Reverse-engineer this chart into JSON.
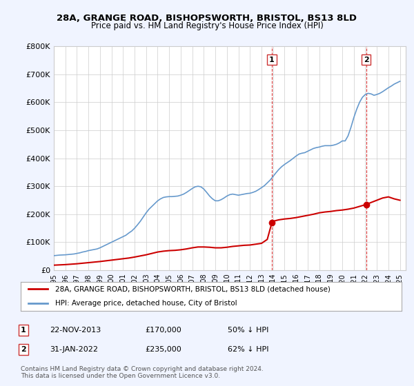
{
  "title": "28A, GRANGE ROAD, BISHOPSWORTH, BRISTOL, BS13 8LD",
  "subtitle": "Price paid vs. HM Land Registry's House Price Index (HPI)",
  "ylabel_ticks": [
    "£0",
    "£100K",
    "£200K",
    "£300K",
    "£400K",
    "£500K",
    "£600K",
    "£700K",
    "£800K"
  ],
  "ylim": [
    0,
    800000
  ],
  "xlim_start": 1995.0,
  "xlim_end": 2025.5,
  "sale1_date": 2013.9,
  "sale1_price": 170000,
  "sale1_label": "22-NOV-2013",
  "sale1_hpi_pct": "50% ↓ HPI",
  "sale2_date": 2022.08,
  "sale2_price": 235000,
  "sale2_label": "31-JAN-2022",
  "sale2_hpi_pct": "62% ↓ HPI",
  "red_line_color": "#cc0000",
  "blue_line_color": "#6699cc",
  "background_color": "#f0f4ff",
  "plot_bg_color": "#ffffff",
  "grid_color": "#cccccc",
  "legend1": "28A, GRANGE ROAD, BISHOPSWORTH, BRISTOL, BS13 8LD (detached house)",
  "legend2": "HPI: Average price, detached house, City of Bristol",
  "footnote": "Contains HM Land Registry data © Crown copyright and database right 2024.\nThis data is licensed under the Open Government Licence v3.0.",
  "hpi_years": [
    1995.0,
    1995.25,
    1995.5,
    1995.75,
    1996.0,
    1996.25,
    1996.5,
    1996.75,
    1997.0,
    1997.25,
    1997.5,
    1997.75,
    1998.0,
    1998.25,
    1998.5,
    1998.75,
    1999.0,
    1999.25,
    1999.5,
    1999.75,
    2000.0,
    2000.25,
    2000.5,
    2000.75,
    2001.0,
    2001.25,
    2001.5,
    2001.75,
    2002.0,
    2002.25,
    2002.5,
    2002.75,
    2003.0,
    2003.25,
    2003.5,
    2003.75,
    2004.0,
    2004.25,
    2004.5,
    2004.75,
    2005.0,
    2005.25,
    2005.5,
    2005.75,
    2006.0,
    2006.25,
    2006.5,
    2006.75,
    2007.0,
    2007.25,
    2007.5,
    2007.75,
    2008.0,
    2008.25,
    2008.5,
    2008.75,
    2009.0,
    2009.25,
    2009.5,
    2009.75,
    2010.0,
    2010.25,
    2010.5,
    2010.75,
    2011.0,
    2011.25,
    2011.5,
    2011.75,
    2012.0,
    2012.25,
    2012.5,
    2012.75,
    2013.0,
    2013.25,
    2013.5,
    2013.75,
    2014.0,
    2014.25,
    2014.5,
    2014.75,
    2015.0,
    2015.25,
    2015.5,
    2015.75,
    2016.0,
    2016.25,
    2016.5,
    2016.75,
    2017.0,
    2017.25,
    2017.5,
    2017.75,
    2018.0,
    2018.25,
    2018.5,
    2018.75,
    2019.0,
    2019.25,
    2019.5,
    2019.75,
    2020.0,
    2020.25,
    2020.5,
    2020.75,
    2021.0,
    2021.25,
    2021.5,
    2021.75,
    2022.0,
    2022.25,
    2022.5,
    2022.75,
    2023.0,
    2023.25,
    2023.5,
    2023.75,
    2024.0,
    2024.25,
    2024.5,
    2024.75,
    2025.0
  ],
  "hpi_values": [
    52000,
    53000,
    54000,
    54500,
    55000,
    56000,
    57000,
    58000,
    60000,
    62000,
    65000,
    67000,
    70000,
    72000,
    74000,
    76000,
    80000,
    85000,
    90000,
    95000,
    100000,
    105000,
    110000,
    115000,
    120000,
    125000,
    133000,
    140000,
    150000,
    162000,
    175000,
    190000,
    205000,
    218000,
    228000,
    238000,
    248000,
    255000,
    260000,
    262000,
    263000,
    263000,
    264000,
    265000,
    268000,
    272000,
    278000,
    285000,
    292000,
    298000,
    300000,
    298000,
    290000,
    278000,
    265000,
    255000,
    248000,
    248000,
    252000,
    258000,
    265000,
    270000,
    272000,
    270000,
    268000,
    270000,
    272000,
    274000,
    275000,
    278000,
    282000,
    288000,
    295000,
    302000,
    312000,
    322000,
    335000,
    348000,
    360000,
    370000,
    378000,
    385000,
    392000,
    400000,
    408000,
    415000,
    418000,
    420000,
    425000,
    430000,
    435000,
    438000,
    440000,
    443000,
    445000,
    445000,
    445000,
    447000,
    450000,
    455000,
    462000,
    462000,
    480000,
    510000,
    545000,
    575000,
    600000,
    618000,
    628000,
    632000,
    630000,
    625000,
    628000,
    632000,
    638000,
    645000,
    652000,
    658000,
    665000,
    670000,
    675000
  ],
  "red_years": [
    1995.0,
    1995.5,
    1996.0,
    1996.5,
    1997.0,
    1997.5,
    1998.0,
    1998.5,
    1999.0,
    1999.5,
    2000.0,
    2000.5,
    2001.0,
    2001.5,
    2002.0,
    2002.5,
    2003.0,
    2003.5,
    2004.0,
    2004.5,
    2005.0,
    2005.5,
    2006.0,
    2006.5,
    2007.0,
    2007.5,
    2008.0,
    2008.5,
    2009.0,
    2009.5,
    2010.0,
    2010.5,
    2011.0,
    2011.5,
    2012.0,
    2012.5,
    2013.0,
    2013.5,
    2013.9,
    2014.0,
    2014.5,
    2015.0,
    2015.5,
    2016.0,
    2016.5,
    2017.0,
    2017.5,
    2018.0,
    2018.5,
    2019.0,
    2019.5,
    2020.0,
    2020.5,
    2021.0,
    2021.5,
    2022.08,
    2022.5,
    2023.0,
    2023.5,
    2024.0,
    2024.5,
    2025.0
  ],
  "red_values": [
    18000,
    19000,
    20000,
    21500,
    23000,
    25000,
    27000,
    29000,
    31000,
    33500,
    36000,
    38500,
    41000,
    43500,
    47000,
    51000,
    55000,
    60000,
    65000,
    68000,
    70000,
    71000,
    73000,
    76000,
    80000,
    83000,
    83000,
    82000,
    80000,
    80000,
    82000,
    85000,
    87000,
    89000,
    90000,
    93000,
    96000,
    110000,
    170000,
    175000,
    180000,
    183000,
    185000,
    188000,
    192000,
    196000,
    200000,
    205000,
    208000,
    210000,
    213000,
    215000,
    218000,
    222000,
    228000,
    235000,
    242000,
    250000,
    258000,
    262000,
    255000,
    250000
  ]
}
